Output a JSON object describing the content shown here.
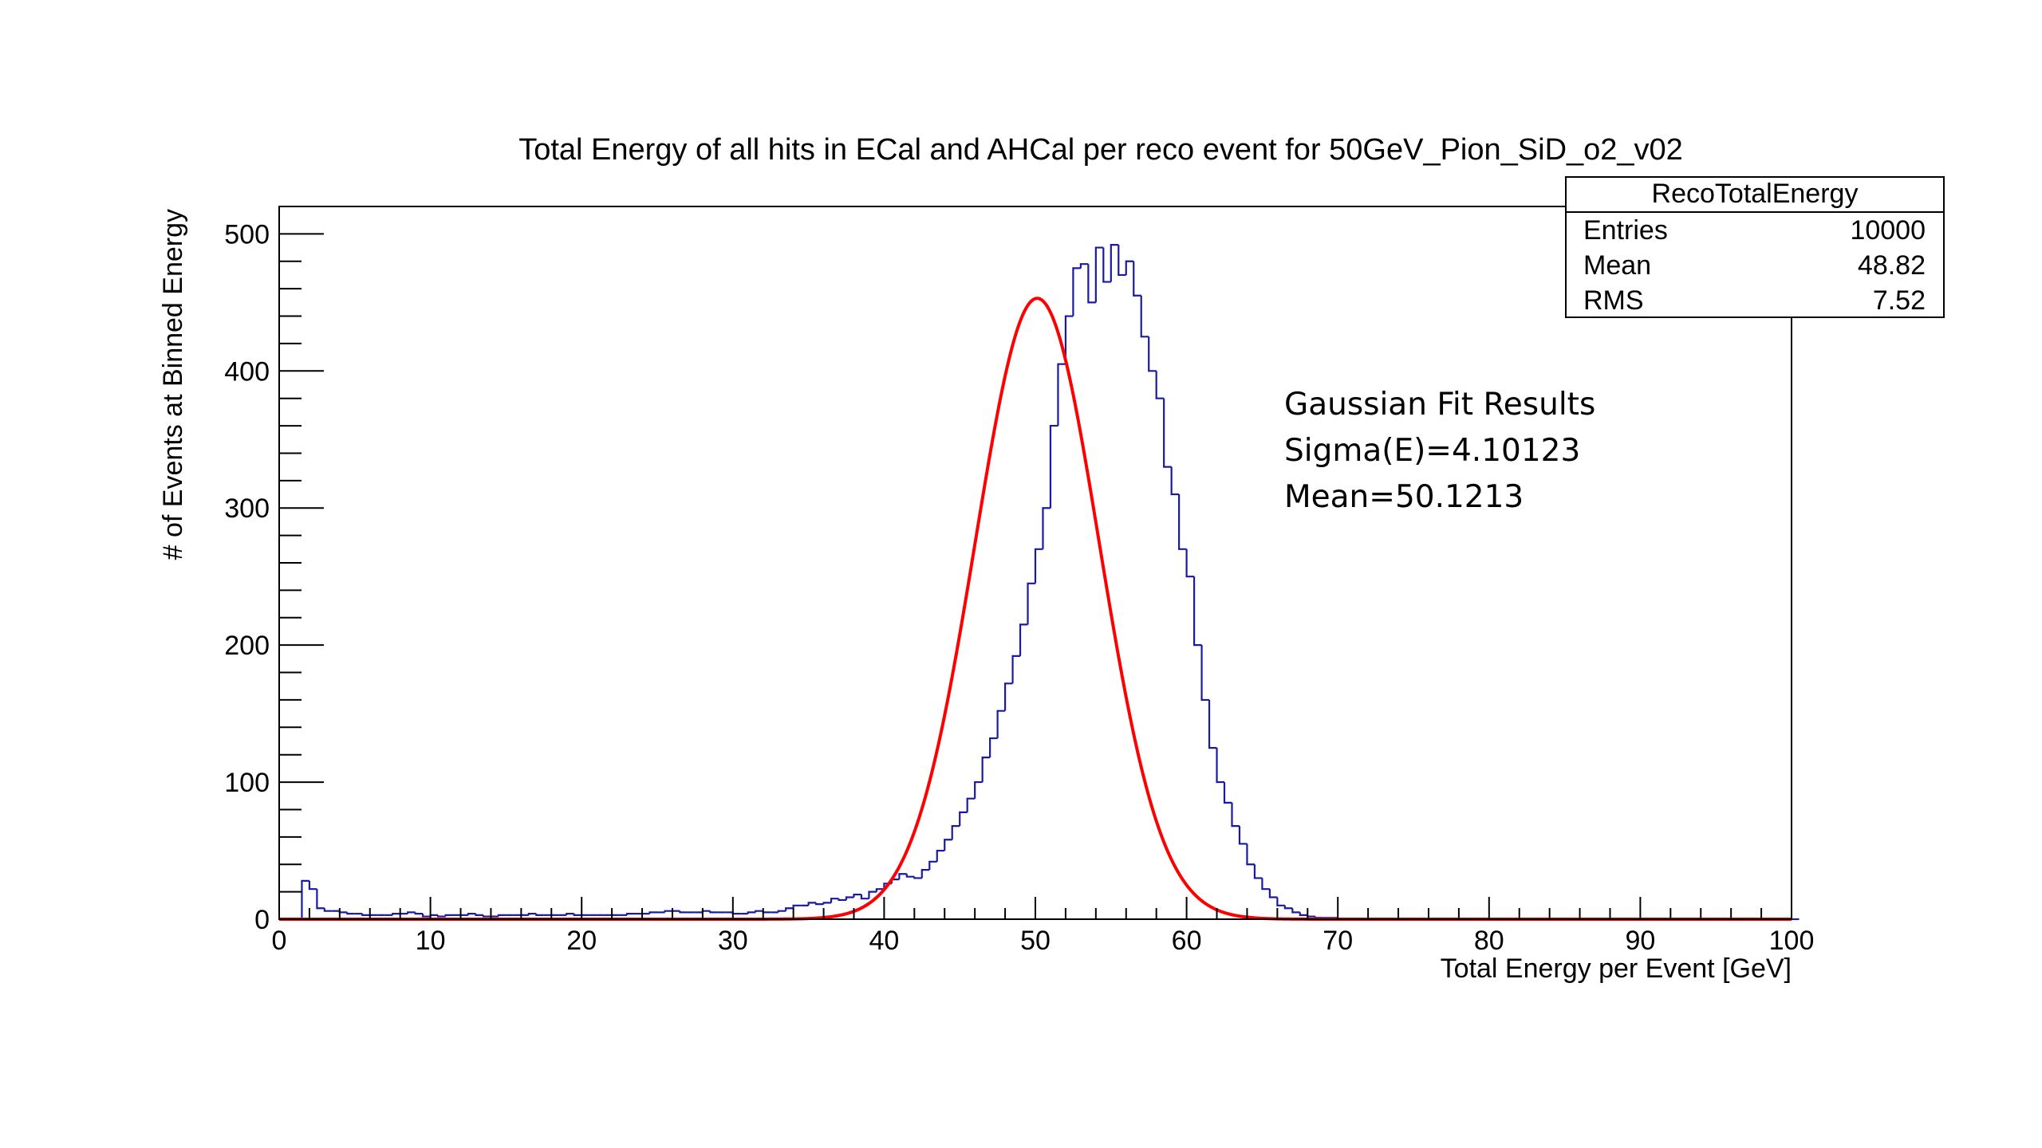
{
  "chart_data": {
    "type": "bar",
    "title": "Total Energy of all hits in ECal and AHCal per reco event for 50GeV_Pion_SiD_o2_v02",
    "xlabel": "Total Energy per Event [GeV]",
    "ylabel": "# of Events at Binned Energy",
    "xlim": [
      0,
      100
    ],
    "ylim": [
      0,
      520
    ],
    "x_ticks": [
      "0",
      "10",
      "20",
      "30",
      "40",
      "50",
      "60",
      "70",
      "80",
      "90",
      "100"
    ],
    "y_ticks": [
      "0",
      "100",
      "200",
      "300",
      "400",
      "500"
    ],
    "grid": false,
    "bin_width": 0.5,
    "series": [
      {
        "name": "RecoTotalEnergy",
        "color": "#1a1aa0",
        "bin_start": 0,
        "values": [
          0,
          0,
          0,
          28,
          22,
          8,
          6,
          6,
          5,
          4,
          4,
          3,
          3,
          3,
          3,
          4,
          4,
          5,
          4,
          2,
          3,
          2,
          3,
          3,
          3,
          4,
          3,
          2,
          2,
          3,
          3,
          3,
          3,
          4,
          3,
          3,
          3,
          3,
          4,
          3,
          3,
          3,
          3,
          3,
          3,
          3,
          4,
          4,
          4,
          5,
          5,
          6,
          6,
          5,
          5,
          5,
          6,
          5,
          5,
          5,
          4,
          4,
          5,
          6,
          5,
          5,
          6,
          8,
          10,
          10,
          12,
          11,
          12,
          15,
          14,
          16,
          18,
          15,
          20,
          22,
          26,
          29,
          33,
          31,
          30,
          36,
          42,
          50,
          58,
          68,
          78,
          88,
          100,
          118,
          132,
          152,
          172,
          192,
          215,
          245,
          270,
          300,
          360,
          405,
          440,
          475,
          478,
          450,
          490,
          465,
          492,
          470,
          480,
          455,
          425,
          400,
          380,
          330,
          310,
          270,
          250,
          200,
          160,
          125,
          100,
          85,
          68,
          55,
          40,
          30,
          22,
          16,
          10,
          8,
          5,
          3,
          2,
          1,
          1,
          1,
          0,
          0,
          0,
          0,
          0,
          0,
          0,
          0,
          0,
          0,
          0,
          0,
          0,
          0,
          0,
          0,
          0,
          0,
          0,
          0,
          0,
          0,
          0,
          0,
          0,
          0,
          0,
          0,
          0,
          0,
          0,
          0,
          0,
          0,
          0,
          0,
          0,
          0,
          0,
          0,
          0,
          0,
          0,
          0,
          0,
          0,
          0,
          0,
          0,
          0,
          0,
          0,
          0,
          0,
          0,
          0,
          0,
          0,
          0,
          0,
          0
        ]
      },
      {
        "name": "Gaussian Fit",
        "type": "line",
        "color": "#ff0000",
        "amplitude": 453,
        "mean": 50.1213,
        "sigma": 4.10123
      }
    ],
    "legend_position": "top-right",
    "stats_box": {
      "title": "RecoTotalEnergy",
      "rows": [
        {
          "label": "Entries",
          "value": "10000"
        },
        {
          "label": "Mean",
          "value": "48.82"
        },
        {
          "label": "RMS",
          "value": "7.52"
        }
      ]
    },
    "fit_annotation": {
      "lines": [
        "Gaussian Fit Results",
        "Sigma(E)=4.10123",
        "Mean=50.1213"
      ]
    }
  }
}
